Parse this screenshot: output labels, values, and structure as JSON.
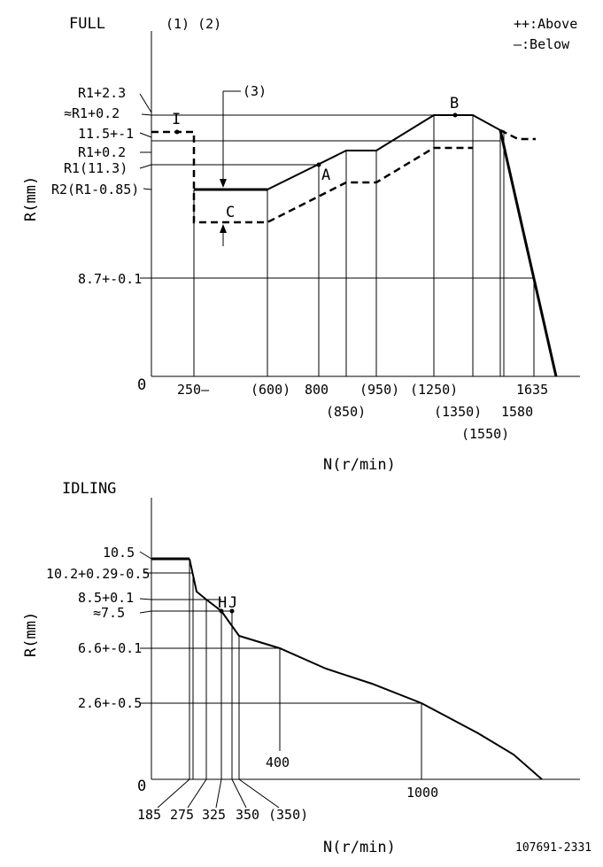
{
  "full": {
    "title": "FULL",
    "marks": "(1) (2)",
    "legend_above": "++:Above",
    "legend_below": "—:Below",
    "y_axis_label": "R(mm)",
    "x_axis_label": "N(r/min)",
    "origin": "0",
    "y_labels": [
      "R1+2.3",
      "≈R1+0.2",
      "11.5+-1",
      "R1+0.2",
      "R1(11.3)",
      "R2(R1-0.85)",
      "8.7+-0.1"
    ],
    "x_labels_row1": [
      "250—",
      "(600)",
      "800",
      "(950)",
      "(1250)",
      "1635"
    ],
    "x_labels_row2": [
      "(850)",
      "(1350)",
      "1580"
    ],
    "x_labels_row3": [
      "(1550)"
    ],
    "callout_3": "(3)",
    "points": {
      "I": "I",
      "A": "A",
      "B": "B",
      "C": "C"
    }
  },
  "idling": {
    "title": "IDLING",
    "y_axis_label": "R(mm)",
    "x_axis_label": "N(r/min)",
    "origin": "0",
    "y_labels": [
      "10.5",
      "10.2+0.29-0.5",
      "8.5+0.1",
      "≈7.5",
      "6.6+-0.1",
      "2.6+-0.5"
    ],
    "x_labels": [
      "185",
      "275",
      "325",
      "350",
      "(350)",
      "1000"
    ],
    "x_label_inner": "400",
    "points": {
      "H": "H",
      "J": "J"
    }
  },
  "drawing_number": "107691-2331"
}
